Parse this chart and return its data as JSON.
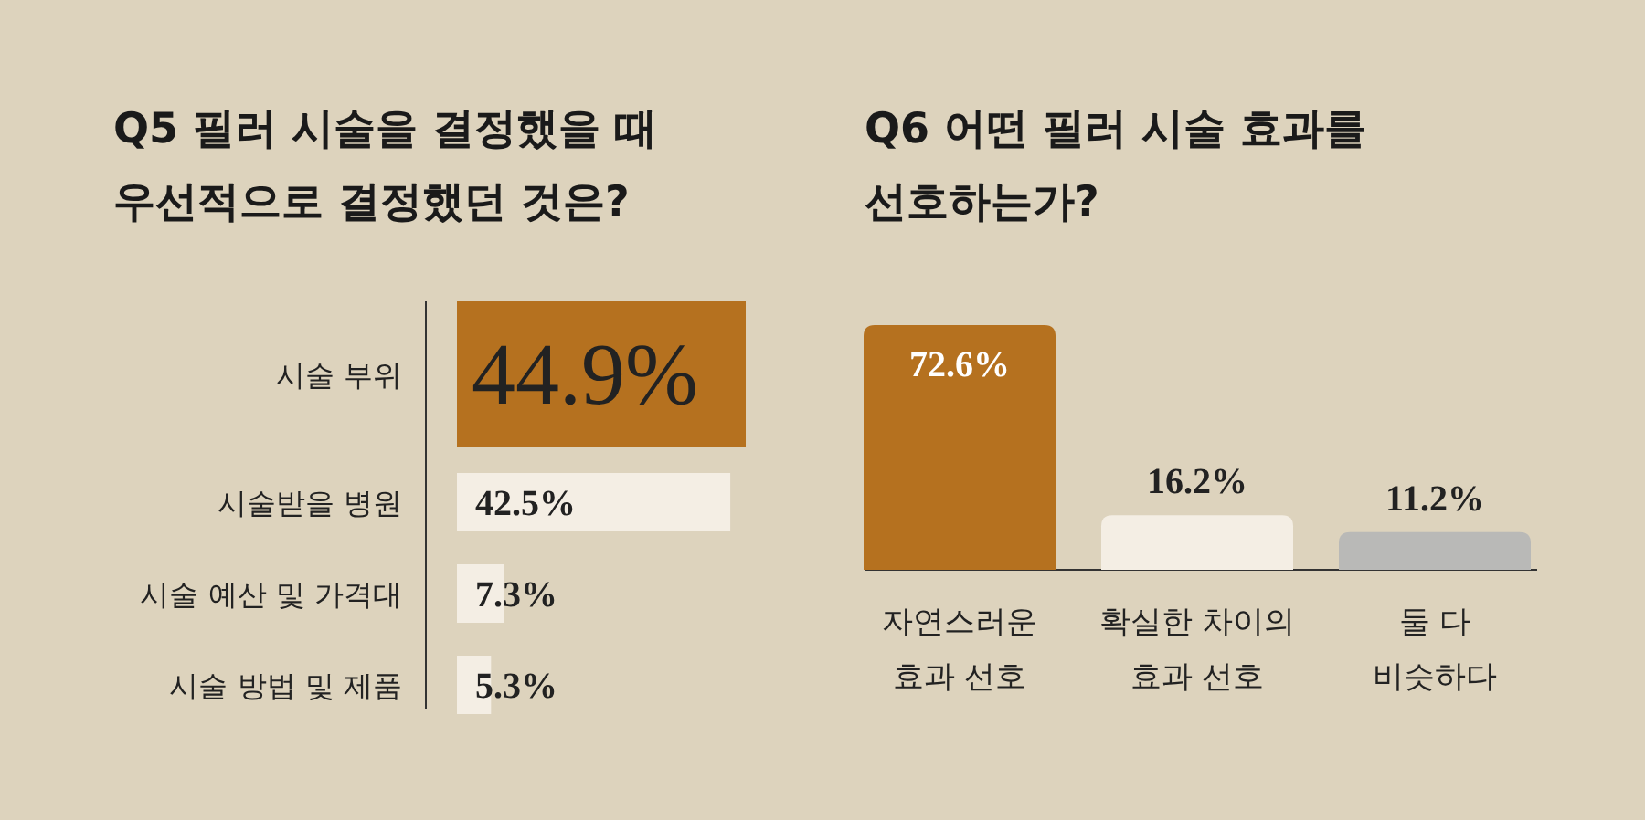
{
  "chart_data": [
    {
      "type": "bar",
      "orientation": "horizontal",
      "title": "Q5  필러 시술을 결정했을 때\n우선적으로 결정했던 것은?",
      "categories": [
        "시술 부위",
        "시술받을 병원",
        "시술 예산 및 가격대",
        "시술 방법 및 제품"
      ],
      "values": [
        44.9,
        42.5,
        7.3,
        5.3
      ],
      "colors": [
        "#b5711f",
        "#f4eee4",
        "#f4eee4",
        "#f4eee4"
      ],
      "value_labels": [
        "44.9%",
        "42.5%",
        "7.3%",
        "5.3%"
      ]
    },
    {
      "type": "bar",
      "title": "Q6  어떤 필러 시술 효과를\n선호하는가?",
      "categories": [
        "자연스러운\n효과 선호",
        "확실한 차이의\n효과 선호",
        "둘 다\n비슷하다"
      ],
      "values": [
        72.6,
        16.2,
        11.2
      ],
      "colors": [
        "#b5711f",
        "#f4eee4",
        "#b9b9b7"
      ],
      "value_labels": [
        "72.6%",
        "16.2%",
        "11.2%"
      ]
    }
  ]
}
